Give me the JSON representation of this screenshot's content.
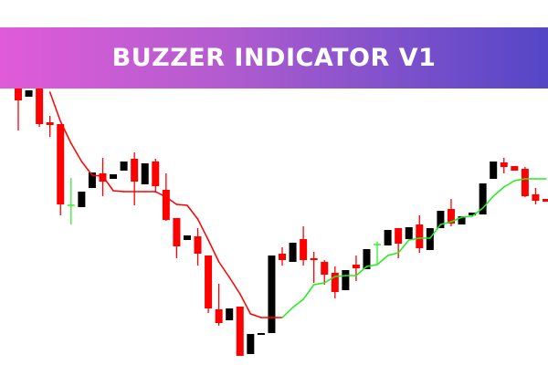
{
  "banner": {
    "title": "BUZZER INDICATOR V1",
    "gradient": [
      "#e05bd9",
      "#5546c6"
    ]
  },
  "chart_data": {
    "type": "candlestick",
    "title": "",
    "grid": false,
    "ylim": [
      0,
      400
    ],
    "colors": {
      "bull": "#000000",
      "bear": "#ff0000",
      "doji": "#33ee33",
      "line_down": "#ff0000",
      "line_up": "#22ee22"
    },
    "candles": [
      [
        310,
        310,
        257,
        290
      ],
      [
        294,
        301,
        294,
        301
      ],
      [
        310,
        310,
        261,
        264
      ],
      [
        266,
        273,
        250,
        263
      ],
      [
        264,
        264,
        164,
        176
      ],
      [
        175,
        205,
        154,
        175
      ],
      [
        173,
        190,
        173,
        190
      ],
      [
        194,
        211,
        194,
        211
      ],
      [
        210,
        227,
        185,
        201
      ],
      [
        204,
        209,
        204,
        209
      ],
      [
        213,
        223,
        213,
        223
      ],
      [
        226,
        233,
        175,
        201
      ],
      [
        198,
        221,
        198,
        221
      ],
      [
        223,
        226,
        189,
        196
      ],
      [
        192,
        210,
        158,
        159
      ],
      [
        161,
        161,
        117,
        130
      ],
      [
        137,
        142,
        137,
        142
      ],
      [
        141,
        150,
        109,
        122
      ],
      [
        120,
        120,
        57,
        62
      ],
      [
        61,
        89,
        43,
        46
      ],
      [
        49,
        62,
        49,
        62
      ],
      [
        64,
        64,
        10,
        10
      ],
      [
        12,
        34,
        12,
        34
      ],
      [
        33,
        35,
        33,
        35
      ],
      [
        35,
        120,
        35,
        120
      ],
      [
        122,
        129,
        109,
        115
      ],
      [
        113,
        134,
        113,
        134
      ],
      [
        138,
        152,
        109,
        115
      ],
      [
        117,
        124,
        90,
        115
      ],
      [
        113,
        115,
        88,
        99
      ],
      [
        101,
        108,
        73,
        80
      ],
      [
        82,
        104,
        82,
        104
      ],
      [
        110,
        120,
        92,
        106
      ],
      [
        105,
        127,
        105,
        127
      ],
      [
        132,
        135,
        110,
        132
      ],
      [
        131,
        148,
        131,
        148
      ],
      [
        150,
        150,
        117,
        133
      ],
      [
        138,
        151,
        138,
        151
      ],
      [
        154,
        164,
        123,
        128
      ],
      [
        126,
        150,
        126,
        150
      ],
      [
        150,
        169,
        150,
        169
      ],
      [
        171,
        182,
        152,
        155
      ],
      [
        154,
        163,
        154,
        163
      ],
      [
        164,
        167,
        164,
        167
      ],
      [
        165,
        199,
        165,
        199
      ],
      [
        204,
        223,
        204,
        223
      ],
      [
        222,
        227,
        210,
        217
      ],
      [
        218,
        218,
        213,
        213
      ],
      [
        215,
        217,
        184,
        185
      ],
      [
        187,
        194,
        176,
        180
      ],
      [
        182,
        182,
        179,
        179
      ]
    ],
    "indicator": [
      null,
      null,
      null,
      299,
      267,
      243,
      223,
      208,
      207,
      191,
      190,
      190,
      190,
      190,
      184,
      176,
      175,
      160,
      137,
      113,
      96,
      78,
      56,
      52,
      52,
      52,
      63,
      72,
      88,
      90,
      97,
      98,
      98,
      108,
      110,
      120,
      123,
      137,
      139,
      139,
      154,
      157,
      162,
      163,
      172,
      185,
      195,
      202,
      204,
      204,
      204
    ],
    "indicator_trend": [
      "down",
      "down",
      "down",
      "down",
      "down",
      "down",
      "down",
      "down",
      "down",
      "down",
      "down",
      "down",
      "down",
      "down",
      "down",
      "down",
      "down",
      "down",
      "down",
      "down",
      "down",
      "down",
      "down",
      "down",
      "down",
      "up",
      "up",
      "up",
      "up",
      "up",
      "up",
      "up",
      "up",
      "up",
      "up",
      "up",
      "up",
      "up",
      "up",
      "up",
      "up",
      "up",
      "up",
      "up",
      "up",
      "up",
      "up",
      "up",
      "up",
      "up",
      "up"
    ]
  }
}
